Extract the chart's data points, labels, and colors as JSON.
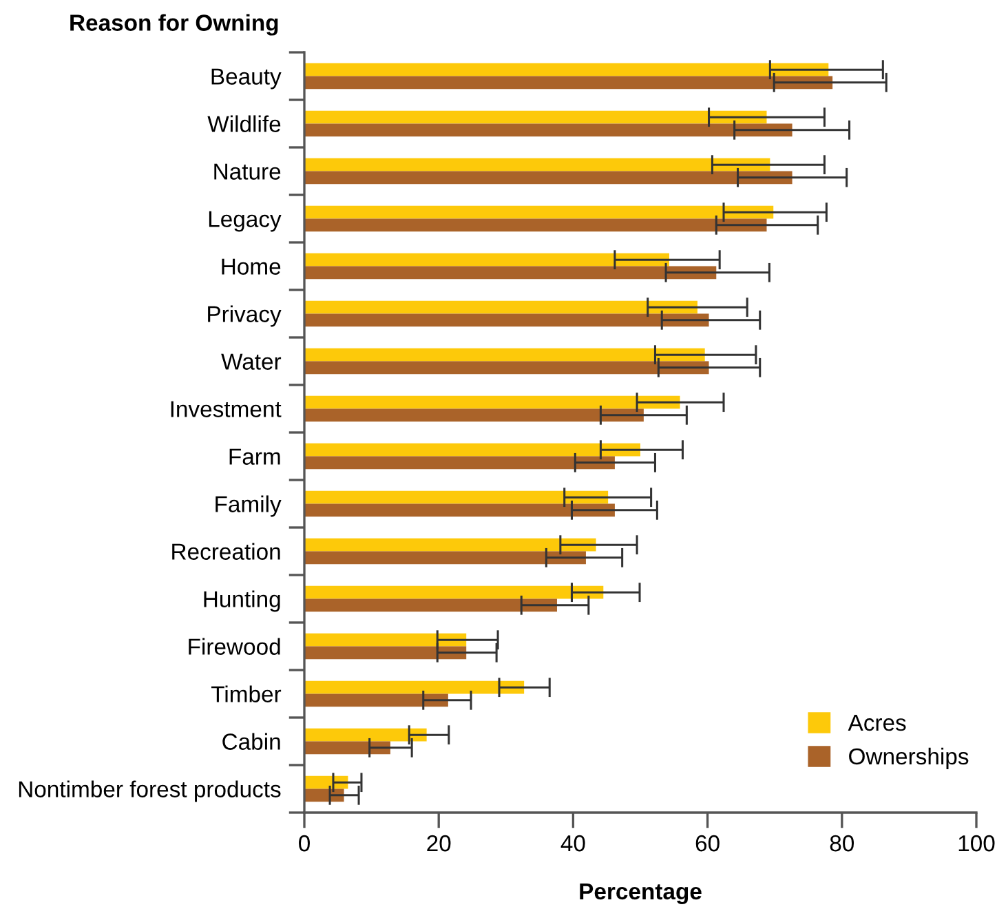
{
  "chart_data": {
    "type": "bar",
    "orientation": "horizontal",
    "title": "Reason for Owning",
    "xlabel": "Percentage",
    "categories": [
      "Beauty",
      "Wildlife",
      "Nature",
      "Legacy",
      "Home",
      "Privacy",
      "Water",
      "Investment",
      "Farm",
      "Family",
      "Recreation",
      "Hunting",
      "Firewood",
      "Timber",
      "Cabin",
      "Nontimber forest products"
    ],
    "series": [
      {
        "name": "Acres",
        "color": "#fdc90a",
        "values": [
          78.0,
          68.8,
          69.3,
          69.8,
          54.3,
          58.5,
          59.6,
          55.9,
          50.0,
          45.2,
          43.4,
          44.5,
          24.1,
          32.7,
          18.2,
          6.5
        ],
        "errors": [
          [
            69.3,
            86.1
          ],
          [
            60.2,
            77.4
          ],
          [
            60.7,
            77.4
          ],
          [
            62.4,
            77.7
          ],
          [
            46.2,
            61.8
          ],
          [
            51.1,
            65.9
          ],
          [
            52.2,
            67.2
          ],
          [
            49.5,
            62.4
          ],
          [
            44.1,
            56.3
          ],
          [
            38.7,
            51.6
          ],
          [
            38.1,
            49.5
          ],
          [
            39.8,
            49.9
          ],
          [
            19.8,
            28.8
          ],
          [
            29.0,
            36.5
          ],
          [
            15.6,
            21.5
          ],
          [
            4.3,
            8.5
          ]
        ]
      },
      {
        "name": "Ownerships",
        "color": "#aa6329",
        "values": [
          78.6,
          72.6,
          72.6,
          68.8,
          61.3,
          60.2,
          60.2,
          50.5,
          46.2,
          46.2,
          41.9,
          37.6,
          24.1,
          21.4,
          12.8,
          5.9
        ],
        "errors": [
          [
            69.9,
            86.6
          ],
          [
            64.0,
            81.1
          ],
          [
            64.5,
            80.7
          ],
          [
            61.3,
            76.4
          ],
          [
            53.8,
            69.2
          ],
          [
            53.2,
            67.8
          ],
          [
            52.7,
            67.8
          ],
          [
            44.1,
            56.9
          ],
          [
            40.3,
            52.2
          ],
          [
            39.8,
            52.5
          ],
          [
            36.0,
            47.3
          ],
          [
            32.3,
            42.3
          ],
          [
            19.8,
            28.6
          ],
          [
            17.7,
            24.8
          ],
          [
            9.7,
            16.0
          ],
          [
            3.8,
            8.1
          ]
        ]
      }
    ],
    "xlim": [
      0,
      100
    ],
    "xticks": [
      0,
      20,
      40,
      60,
      80,
      100
    ],
    "grid": false,
    "legend": "bottom right"
  }
}
